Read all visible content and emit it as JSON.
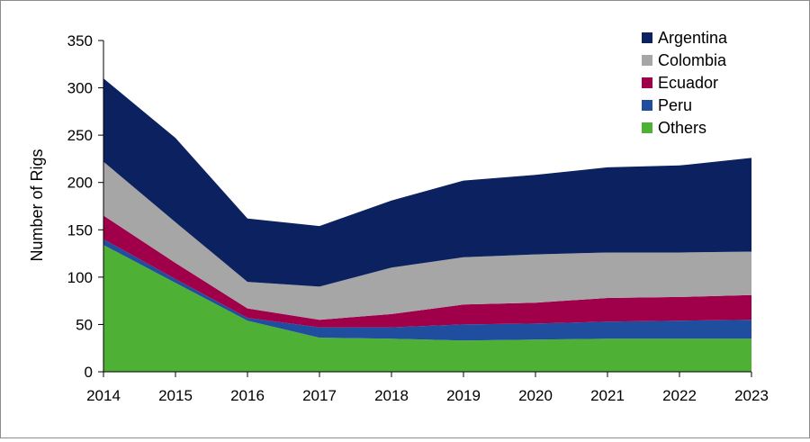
{
  "chart_data": {
    "type": "area",
    "stacked": true,
    "xlabel": "",
    "ylabel": "Number of Rigs",
    "x": [
      "2014",
      "2015",
      "2016",
      "2017",
      "2018",
      "2019",
      "2020",
      "2021",
      "2022",
      "2023"
    ],
    "ylim": [
      0,
      350
    ],
    "yticks": [
      0,
      50,
      100,
      150,
      200,
      250,
      300,
      350
    ],
    "grid": false,
    "legend_position": "top-right",
    "series": [
      {
        "name": "Others",
        "color": "#4eb035",
        "values": [
          134,
          94,
          54,
          36,
          35,
          33,
          34,
          35,
          35,
          35
        ]
      },
      {
        "name": "Peru",
        "color": "#1f4e9e",
        "values": [
          6,
          4,
          3,
          11,
          12,
          17,
          17,
          18,
          19,
          20
        ]
      },
      {
        "name": "Ecuador",
        "color": "#a0004a",
        "values": [
          25,
          17,
          10,
          8,
          14,
          21,
          22,
          25,
          25,
          26
        ]
      },
      {
        "name": "Colombia",
        "color": "#a6a6a6",
        "values": [
          57,
          43,
          28,
          35,
          49,
          50,
          51,
          48,
          47,
          46
        ]
      },
      {
        "name": "Argentina",
        "color": "#0c2160",
        "values": [
          88,
          89,
          67,
          64,
          71,
          81,
          84,
          90,
          92,
          99
        ]
      }
    ]
  }
}
